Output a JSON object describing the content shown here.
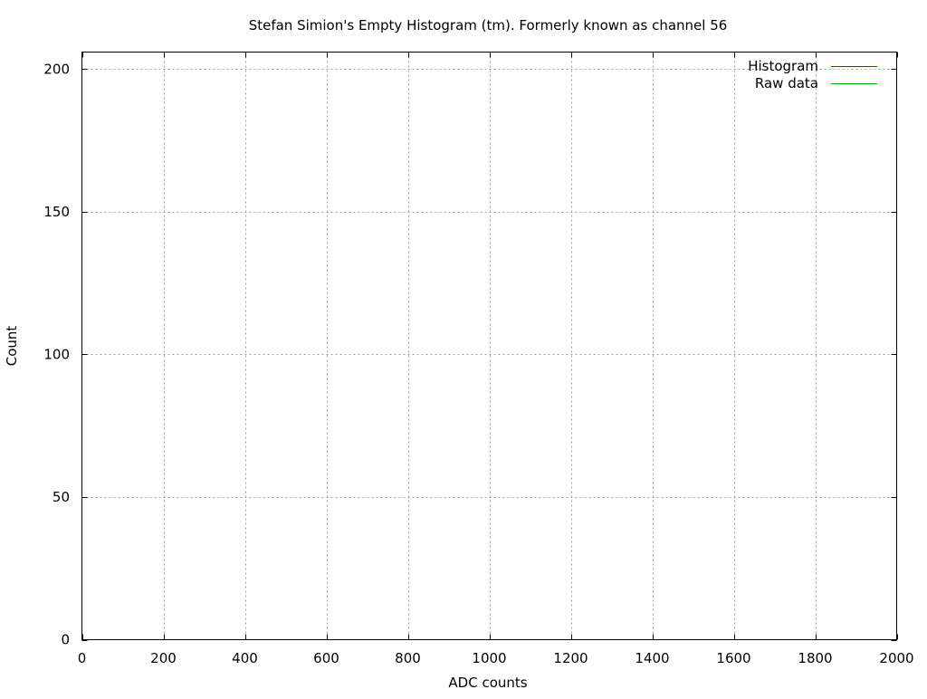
{
  "chart_data": {
    "type": "line",
    "title": "Stefan Simion's Empty Histogram (tm). Formerly known as channel 56",
    "xlabel": "ADC counts",
    "ylabel": "Count",
    "xlim": [
      0,
      2000
    ],
    "ylim": [
      0,
      206
    ],
    "xticks": [
      0,
      200,
      400,
      600,
      800,
      1000,
      1200,
      1400,
      1600,
      1800,
      2000
    ],
    "yticks": [
      0,
      50,
      100,
      150,
      200
    ],
    "grid": true,
    "legend_position": "top-right",
    "series": [
      {
        "name": "Histogram",
        "color": "#cc0000",
        "x": [],
        "y": []
      },
      {
        "name": "Raw data",
        "color": "#00aa00",
        "x": [],
        "y": []
      }
    ]
  }
}
